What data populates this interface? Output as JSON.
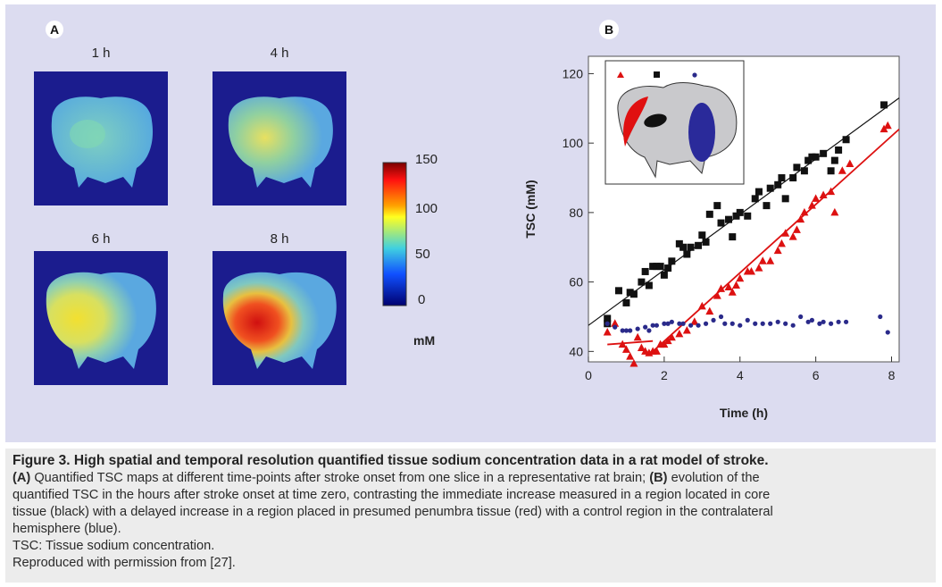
{
  "panel_a": {
    "letter": "A",
    "maps": [
      {
        "label": "1 h",
        "level": "low"
      },
      {
        "label": "4 h",
        "level": "mild"
      },
      {
        "label": "6 h",
        "level": "moderate"
      },
      {
        "label": "8 h",
        "level": "high"
      }
    ],
    "colorbar": {
      "ticks": [
        "150",
        "100",
        "50",
        "0"
      ],
      "unit": "mM",
      "colors": [
        "#ff0000",
        "#ffaa00",
        "#ffff00",
        "#00ccff",
        "#0044ff",
        "#000080"
      ]
    }
  },
  "chart_data": {
    "type": "scatter",
    "panel_letter": "B",
    "xlabel": "Time (h)",
    "ylabel": "TSC (mM)",
    "xlim": [
      0,
      8.2
    ],
    "ylim": [
      37,
      125
    ],
    "xticks": [
      "0",
      "2",
      "4",
      "6",
      "8"
    ],
    "yticks": [
      "40",
      "60",
      "80",
      "100",
      "120"
    ],
    "grid": false,
    "legend": "inset-top-left",
    "series": [
      {
        "color": "#111111",
        "marker": "square",
        "points": [
          [
            0.5,
            49.5
          ],
          [
            0.5,
            48
          ],
          [
            0.8,
            57.5
          ],
          [
            1.0,
            54
          ],
          [
            1.1,
            57
          ],
          [
            1.2,
            56.5
          ],
          [
            1.4,
            60
          ],
          [
            1.5,
            63
          ],
          [
            1.6,
            59
          ],
          [
            1.7,
            64.5
          ],
          [
            1.8,
            64.5
          ],
          [
            1.9,
            64.5
          ],
          [
            2.0,
            62
          ],
          [
            2.1,
            64
          ],
          [
            2.2,
            66
          ],
          [
            2.4,
            71
          ],
          [
            2.5,
            70
          ],
          [
            2.6,
            68
          ],
          [
            2.7,
            70
          ],
          [
            2.9,
            70.5
          ],
          [
            3.0,
            73.5
          ],
          [
            3.1,
            71.5
          ],
          [
            3.2,
            79.5
          ],
          [
            3.4,
            82
          ],
          [
            3.5,
            77
          ],
          [
            3.7,
            78
          ],
          [
            3.8,
            73
          ],
          [
            3.9,
            79
          ],
          [
            4.0,
            80
          ],
          [
            4.2,
            79
          ],
          [
            4.4,
            84
          ],
          [
            4.5,
            86
          ],
          [
            4.7,
            82
          ],
          [
            4.8,
            87
          ],
          [
            5.0,
            88
          ],
          [
            5.1,
            90
          ],
          [
            5.2,
            84
          ],
          [
            5.4,
            90
          ],
          [
            5.5,
            93
          ],
          [
            5.7,
            92
          ],
          [
            5.8,
            95
          ],
          [
            5.9,
            96
          ],
          [
            6.0,
            96
          ],
          [
            6.2,
            97
          ],
          [
            6.4,
            92
          ],
          [
            6.5,
            95
          ],
          [
            6.6,
            98
          ],
          [
            6.8,
            101
          ],
          [
            7.8,
            111
          ]
        ]
      },
      {
        "color": "#dd1111",
        "marker": "triangle",
        "points": [
          [
            0.5,
            45.5
          ],
          [
            0.7,
            48
          ],
          [
            0.9,
            42
          ],
          [
            1.0,
            40.5
          ],
          [
            1.1,
            38.5
          ],
          [
            1.2,
            36.5
          ],
          [
            1.3,
            44
          ],
          [
            1.4,
            41
          ],
          [
            1.5,
            40
          ],
          [
            1.6,
            39.5
          ],
          [
            1.7,
            40
          ],
          [
            1.8,
            40
          ],
          [
            1.9,
            42
          ],
          [
            2.0,
            42
          ],
          [
            2.1,
            43
          ],
          [
            2.2,
            44
          ],
          [
            2.4,
            45
          ],
          [
            2.6,
            46
          ],
          [
            2.8,
            48.5
          ],
          [
            3.0,
            53
          ],
          [
            3.2,
            51.5
          ],
          [
            3.4,
            56
          ],
          [
            3.5,
            58
          ],
          [
            3.7,
            58.5
          ],
          [
            3.8,
            57
          ],
          [
            3.9,
            59
          ],
          [
            4.0,
            61
          ],
          [
            4.2,
            63
          ],
          [
            4.3,
            63
          ],
          [
            4.5,
            64
          ],
          [
            4.6,
            66
          ],
          [
            4.8,
            66
          ],
          [
            5.0,
            69
          ],
          [
            5.1,
            71
          ],
          [
            5.2,
            74
          ],
          [
            5.4,
            73
          ],
          [
            5.5,
            75
          ],
          [
            5.6,
            78
          ],
          [
            5.7,
            80
          ],
          [
            5.9,
            82
          ],
          [
            6.0,
            84
          ],
          [
            6.2,
            85
          ],
          [
            6.4,
            86
          ],
          [
            6.5,
            80
          ],
          [
            6.7,
            92
          ],
          [
            6.9,
            94
          ],
          [
            7.8,
            104
          ],
          [
            7.9,
            105
          ]
        ]
      },
      {
        "color": "#2a2a8a",
        "marker": "circle",
        "points": [
          [
            0.5,
            48
          ],
          [
            0.7,
            47
          ],
          [
            0.9,
            46
          ],
          [
            1.0,
            46
          ],
          [
            1.1,
            46
          ],
          [
            1.3,
            46.5
          ],
          [
            1.5,
            47
          ],
          [
            1.6,
            46
          ],
          [
            1.7,
            47.5
          ],
          [
            1.8,
            47.5
          ],
          [
            2.0,
            48
          ],
          [
            2.1,
            48
          ],
          [
            2.2,
            48.5
          ],
          [
            2.4,
            48
          ],
          [
            2.5,
            48
          ],
          [
            2.7,
            47.5
          ],
          [
            2.9,
            47.5
          ],
          [
            3.1,
            48
          ],
          [
            3.3,
            49
          ],
          [
            3.5,
            50
          ],
          [
            3.6,
            48
          ],
          [
            3.8,
            48
          ],
          [
            4.0,
            47.5
          ],
          [
            4.2,
            49
          ],
          [
            4.4,
            48
          ],
          [
            4.6,
            48
          ],
          [
            4.8,
            48
          ],
          [
            5.0,
            48.5
          ],
          [
            5.2,
            48
          ],
          [
            5.4,
            47.5
          ],
          [
            5.6,
            50
          ],
          [
            5.8,
            48.5
          ],
          [
            5.9,
            49
          ],
          [
            6.1,
            48
          ],
          [
            6.2,
            48.5
          ],
          [
            6.4,
            48
          ],
          [
            6.6,
            48.5
          ],
          [
            6.8,
            48.5
          ],
          [
            7.7,
            50
          ],
          [
            7.9,
            45.5
          ]
        ]
      }
    ],
    "fit_lines": [
      {
        "color": "#111111",
        "x": [
          0,
          8.2
        ],
        "y": [
          47.5,
          113
        ]
      },
      {
        "color": "#dd1111",
        "x": [
          0.5,
          1.7
        ],
        "y": [
          42,
          43
        ]
      },
      {
        "color": "#dd1111",
        "x": [
          1.7,
          8.2
        ],
        "y": [
          40,
          104
        ]
      }
    ]
  },
  "caption": {
    "title": "Figure 3. High spatial and temporal resolution quantified tissue sodium concentration data in a rat model of stroke.",
    "line1_bold_a": "(A)",
    "line1_text_a": " Quantified TSC maps at different time-points after stroke onset from one slice in a representative rat brain; ",
    "line1_bold_b": "(B)",
    "line1_text_b": " evolution of the",
    "line2": "quantified TSC in the hours after stroke onset at time zero, contrasting the immediate increase measured in a region located in core",
    "line3": "tissue (black) with a delayed increase in a region placed in presumed penumbra tissue (red) with a control region in the contralateral",
    "line4": "hemisphere (blue).",
    "line5": "TSC: Tissue sodium concentration.",
    "line6": "Reproduced with permission from [27]."
  }
}
